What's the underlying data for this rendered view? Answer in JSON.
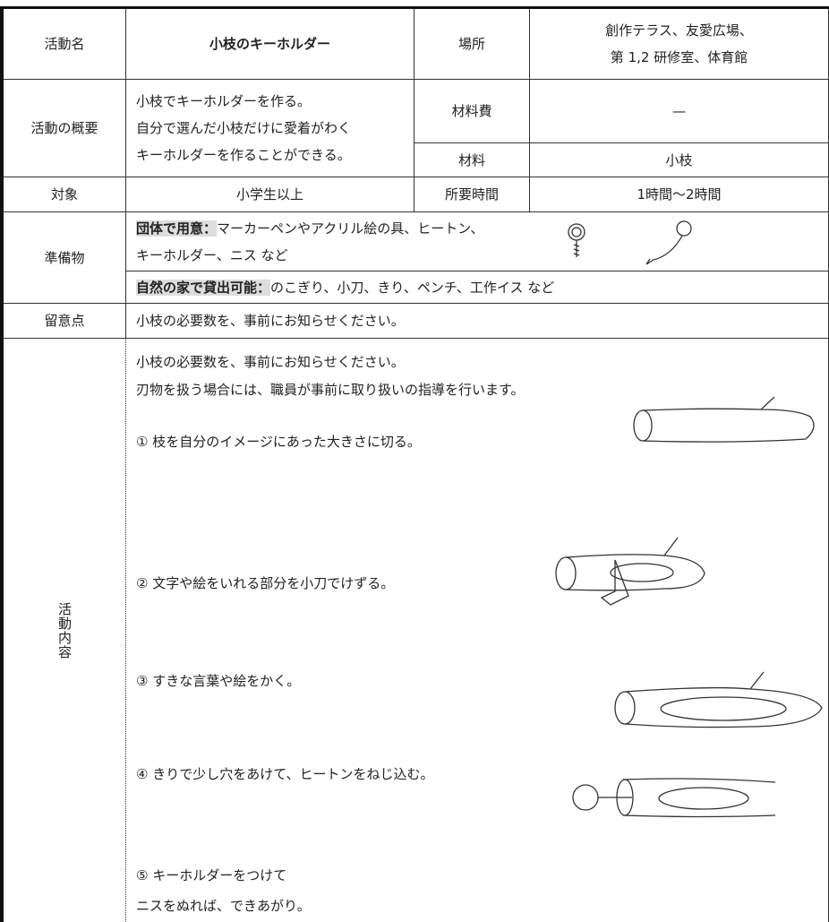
{
  "activity_name": {
    "label": "活動名",
    "value": "小枝のキーホルダー"
  },
  "place": {
    "label": "場所",
    "lines": [
      "創作テラス、友愛広場、",
      "第 1,2 研修室、体育館"
    ]
  },
  "overview": {
    "label": "活動の概要",
    "lines": [
      "小枝でキーホルダーを作る。",
      "自分で選んだ小枝だけに愛着がわく",
      "キーホルダーを作ることができる。"
    ]
  },
  "material_cost": {
    "label": "材料費",
    "value": "—"
  },
  "materials": {
    "label": "材料",
    "value": "小枝"
  },
  "target": {
    "label": "対象",
    "value": "小学生以上"
  },
  "duration": {
    "label": "所要時間",
    "value": "1時間～2時間"
  },
  "preparation": {
    "label": "準備物",
    "group": {
      "heading": "団体で用意：",
      "lines": [
        "マーカーペンやアクリル絵の具、ヒートン、",
        "キーホルダー、ニス など"
      ]
    },
    "rental": {
      "heading": "自然の家で貸出可能：",
      "text": "のこぎり、小刀、きり、ペンチ、工作イス など"
    }
  },
  "notes": {
    "label": "留意点",
    "value": "小枝の必要数を、事前にお知らせください。"
  },
  "content": {
    "label": "活動内容",
    "intro": [
      "小枝の必要数を、事前にお知らせください。",
      "刃物を扱う場合には、職員が事前に取り扱いの指導を行います。"
    ],
    "steps": [
      [
        "① 枝を自分のイメージにあった大きさに切る。"
      ],
      [
        "② 文字や絵をいれる部分を小刀でけずる。"
      ],
      [
        "③ すきな言葉や絵をかく。"
      ],
      [
        "④ きりで少し穴をあけて、ヒートンをねじ込む。"
      ],
      [
        "⑤ キーホルダーをつけて",
        "ニスをぬれば、できあがり。"
      ]
    ]
  }
}
